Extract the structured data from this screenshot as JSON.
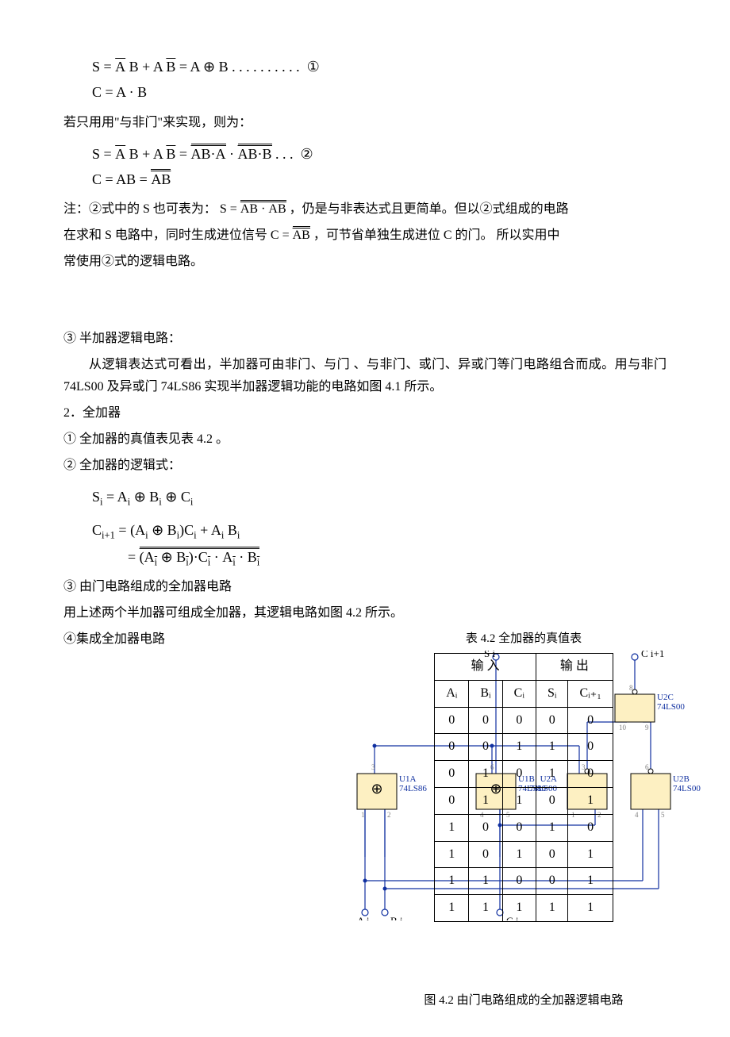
{
  "equations": {
    "eq1_line1": "S = A̅ B + A B̅ = A ⊕ B",
    "eq1_dots": ". . . . . . . . . .",
    "eq1_mark": "①",
    "eq1_line2": "C = A · B",
    "nand_intro": "若只用用\"与非门\"来实现，则为：",
    "eq2_line1_left": "S = A̅ B + A B̅ = ",
    "eq2_line1_right": "AB·A · AB·B",
    "eq2_dots": ". . .",
    "eq2_mark": "②",
    "eq2_line2_left": "C = AB = ",
    "eq2_line2_right": "AB",
    "note_prefix": "注：②式中的 S 也可表为：",
    "note_expr_left": "S = ",
    "note_expr_inner1": "AB",
    "note_expr_dot": "·",
    "note_expr_inner2": "AB",
    "note_mid": "，仍是与非表达式且更简单。但以②式组成的电路",
    "note_line2_a": "在求和 S 电路中，同时生成进位信号 ",
    "note_line2_expr": "C = AB",
    "note_line2_b": "，可节省单独生成进位 C 的门。 所以实用中",
    "note_line3": "常使用②式的逻辑电路。"
  },
  "body": {
    "p3_title": "③ 半加器逻辑电路：",
    "p3_text": "从逻辑表达式可看出，半加器可由非门、与门 、与非门、或门、异或门等门电路组合而成。用与非门 74LS00 及异或门 74LS86 实现半加器逻辑功能的电路如图 4.1 所示。",
    "p_full_title": "2．全加器",
    "p_full_1": "① 全加器的真值表见表 4.2 。",
    "p_full_2": "② 全加器的逻辑式：",
    "eq_si": "Sᵢ = Aᵢ ⊕ Bᵢ ⊕ Cᵢ",
    "eq_ci1_line1": "Cᵢ₊₁ = (Aᵢ ⊕ Bᵢ)Cᵢ + Aᵢ Bᵢ",
    "eq_ci1_line2_eq": "= ",
    "eq_ci1_line2_a": "(Aᵢ ⊕ Bᵢ)·Cᵢ",
    "eq_ci1_line2_dot": " · ",
    "eq_ci1_line2_b": "Aᵢ · Bᵢ",
    "p_full_3": "③ 由门电路组成的全加器电路",
    "p_full_3_text": "用上述两个半加器可组成全加器，其逻辑电路如图 4.2 所示。",
    "p_full_4": "④集成全加器电路"
  },
  "table": {
    "title": "表 4.2  全加器的真值表",
    "header_in": "输    入",
    "header_out": "输    出",
    "cols": [
      "Aᵢ",
      "Bᵢ",
      "Cᵢ",
      "Sᵢ",
      "Cᵢ₊₁"
    ],
    "rows": [
      [
        "0",
        "0",
        "0",
        "0",
        "0"
      ],
      [
        "0",
        "0",
        "1",
        "1",
        "0"
      ],
      [
        "0",
        "1",
        "0",
        "1",
        "0"
      ],
      [
        "0",
        "1",
        "1",
        "0",
        "1"
      ],
      [
        "1",
        "0",
        "0",
        "1",
        "0"
      ],
      [
        "1",
        "0",
        "1",
        "0",
        "1"
      ],
      [
        "1",
        "1",
        "0",
        "0",
        "1"
      ],
      [
        "1",
        "1",
        "1",
        "1",
        "1"
      ]
    ]
  },
  "circuit": {
    "gates": [
      {
        "label": "U1A",
        "chip": "74LS86",
        "type": "xor"
      },
      {
        "label": "U1B",
        "chip": "74LS86",
        "type": "xor"
      },
      {
        "label": "U2A",
        "chip": "74LS00",
        "type": "nand"
      },
      {
        "label": "U2B",
        "chip": "74LS00",
        "type": "nand"
      },
      {
        "label": "U2C",
        "chip": "74LS00",
        "type": "nand"
      }
    ],
    "inputs": [
      "Ai",
      "Bi",
      "Ci"
    ],
    "outputs": [
      "Si",
      "Ci+1"
    ],
    "colors": {
      "gate_fill": "#fdf0c2",
      "wire": "#1030a0",
      "label": "#1030a0",
      "pin": "#808080"
    },
    "caption": "图 4.2    由门电路组成的全加器逻辑电路"
  }
}
